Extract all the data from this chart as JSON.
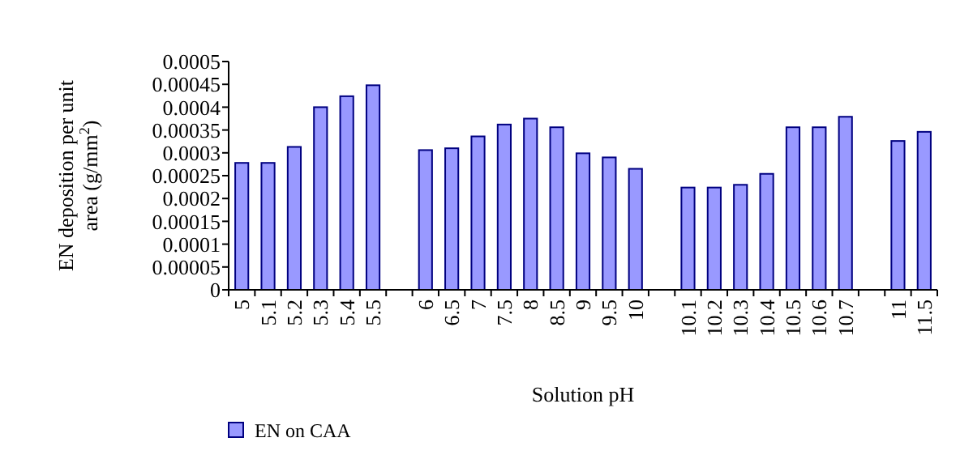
{
  "chart_data": {
    "type": "bar",
    "xlabel": "Solution pH",
    "ylabel": "EN deposition per unit area (g/mm$^{2}$)",
    "categories": [
      "5",
      "5.1",
      "5.2",
      "5.3",
      "5.4",
      "5.5",
      null,
      "6",
      "6.5",
      "7",
      "7.5",
      "8",
      "8.5",
      "9",
      "9.5",
      "10",
      null,
      "10.1",
      "10.2",
      "10.3",
      "10.4",
      "10.5",
      "10.6",
      "10.7",
      null,
      "11",
      "11.5"
    ],
    "series": [
      {
        "name": "EN on CAA",
        "color": "#9999ff",
        "values": [
          0.000278,
          0.000278,
          0.000313,
          0.0004,
          0.000424,
          0.000448,
          null,
          0.000306,
          0.00031,
          0.000336,
          0.000362,
          0.000375,
          0.000356,
          0.000299,
          0.00029,
          0.000265,
          null,
          0.000224,
          0.000224,
          0.00023,
          0.000254,
          0.000356,
          0.000356,
          0.000379,
          null,
          0.000326,
          0.000346
        ]
      }
    ],
    "ylim": [
      0,
      0.0005
    ],
    "yticks": [
      0,
      {
        "value": 5e-05,
        "label": "0.00005"
      },
      0.0001,
      0.00015,
      0.0002,
      0.00025,
      0.0003,
      0.00035,
      0.0004,
      0.00045,
      0.0005
    ],
    "legend": "bottom left",
    "grid": false
  }
}
